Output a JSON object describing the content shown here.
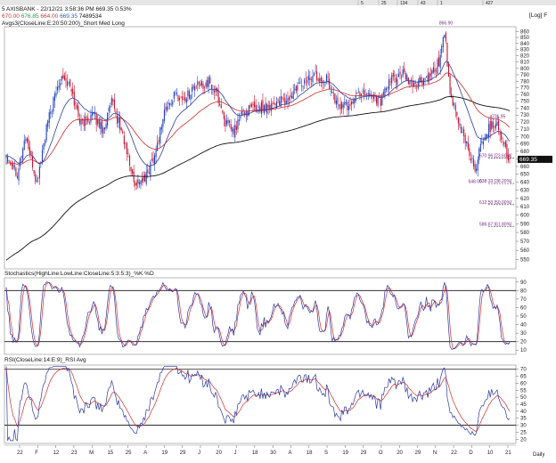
{
  "header": {
    "top_bar": [
      "5",
      "25",
      "134",
      "43",
      "1",
      "427"
    ],
    "symbol_line": "5 AXISBANK - 22/12/21 3:58:36 PM 669.35 0.53%",
    "ohlc": [
      {
        "text": "670.00",
        "color": "#c0392b"
      },
      {
        "text": "676.85",
        "color": "#2e8b57"
      },
      {
        "text": "664.00",
        "color": "#c0392b"
      },
      {
        "text": "669.35",
        "color": "#2e5bb0"
      },
      {
        "text": "7489534",
        "color": "#111111"
      }
    ],
    "ma_legend": "Avgs3(CloseLine:E:20:50:200)_Short Med Long",
    "log_label": "[Log] F"
  },
  "last_price_tag": "669.35",
  "x_axis": {
    "labels": [
      "22",
      "F",
      "12",
      "23",
      "M",
      "15",
      "25",
      "A",
      "19",
      "29",
      "J",
      "20",
      "J",
      "18",
      "30",
      "A",
      "18",
      "S",
      "19",
      "29",
      "O",
      "20",
      "29",
      "N",
      "22",
      "D",
      "10",
      "21"
    ],
    "period_label": "Daily"
  },
  "colors": {
    "candle_up": "#1f3fbf",
    "candle_down": "#c8102e",
    "ma_short": "#2b3fa0",
    "ma_medium": "#d62a2a",
    "ma_long": "#111111",
    "osc_k": "#2a3aa5",
    "osc_d": "#d62a2a",
    "fib": "#7a2a8a"
  },
  "chart_data": [
    {
      "type": "candlestick",
      "name": "price",
      "y_ticks": [
        550,
        560,
        570,
        580,
        590,
        600,
        610,
        620,
        630,
        640,
        650,
        660,
        670,
        680,
        690,
        700,
        710,
        720,
        730,
        740,
        750,
        760,
        770,
        780,
        790,
        800,
        810,
        820,
        830,
        840,
        850,
        860
      ],
      "ylim": [
        540,
        868
      ],
      "y_scale": "log",
      "grid": false,
      "close_anchors": [
        [
          0,
          676
        ],
        [
          8,
          652
        ],
        [
          14,
          700
        ],
        [
          22,
          638
        ],
        [
          30,
          720
        ],
        [
          40,
          792
        ],
        [
          46,
          770
        ],
        [
          54,
          718
        ],
        [
          62,
          730
        ],
        [
          70,
          710
        ],
        [
          76,
          748
        ],
        [
          84,
          702
        ],
        [
          92,
          640
        ],
        [
          100,
          642
        ],
        [
          108,
          682
        ],
        [
          114,
          735
        ],
        [
          122,
          760
        ],
        [
          128,
          752
        ],
        [
          136,
          772
        ],
        [
          146,
          778
        ],
        [
          152,
          760
        ],
        [
          158,
          720
        ],
        [
          164,
          706
        ],
        [
          170,
          732
        ],
        [
          178,
          740
        ],
        [
          186,
          742
        ],
        [
          196,
          750
        ],
        [
          202,
          748
        ],
        [
          212,
          775
        ],
        [
          222,
          790
        ],
        [
          232,
          782
        ],
        [
          238,
          746
        ],
        [
          246,
          742
        ],
        [
          256,
          765
        ],
        [
          264,
          760
        ],
        [
          270,
          750
        ],
        [
          278,
          784
        ],
        [
          286,
          790
        ],
        [
          292,
          775
        ],
        [
          300,
          780
        ],
        [
          306,
          786
        ],
        [
          312,
          810
        ],
        [
          316,
          862
        ],
        [
          320,
          760
        ],
        [
          326,
          718
        ],
        [
          332,
          690
        ],
        [
          338,
          655
        ],
        [
          344,
          700
        ],
        [
          350,
          716
        ],
        [
          354,
          721
        ],
        [
          357,
          700
        ],
        [
          362,
          669
        ]
      ],
      "swing_labels": [
        {
          "text": "866.90",
          "x": 316,
          "y": 866.9
        },
        {
          "text": "721.95",
          "x": 354,
          "y": 721.95
        },
        {
          "text": "648.00",
          "x": 337,
          "y": 648
        }
      ],
      "fib_levels": [
        {
          "text": "670.96",
          "pct": "23.60%",
          "y": 670.96
        },
        {
          "text": "638.33",
          "pct": "38.20%",
          "y": 638.33
        },
        {
          "text": "612.50",
          "pct": "50.00%",
          "y": 612.5
        },
        {
          "text": "586.67",
          "pct": "61.80%",
          "y": 586.67
        }
      ]
    },
    {
      "type": "line",
      "name": "Stochastics(HighLine:LowLine:CloseLine:5:3:5:3)_%K %D",
      "legend_label": "Stochastics(HighLine:LowLine:CloseLine:5:3:5:3)_%K %D",
      "y_ticks": [
        10,
        20,
        30,
        40,
        50,
        60,
        70,
        80,
        90
      ],
      "ylim": [
        5,
        95
      ],
      "reference_lines": [
        20,
        80
      ],
      "series": [
        "%K",
        "%D"
      ]
    },
    {
      "type": "line",
      "name": "RSI(CloseLine:14:E:9)_RSI Avg",
      "legend_label": "RSI(CloseLine:14:E:9)_RSI Avg",
      "y_ticks": [
        20,
        25,
        30,
        35,
        40,
        45,
        50,
        55,
        60,
        65,
        70
      ],
      "ylim": [
        17,
        73
      ],
      "reference_lines": [
        30,
        70
      ],
      "series": [
        "RSI",
        "Avg"
      ]
    }
  ]
}
